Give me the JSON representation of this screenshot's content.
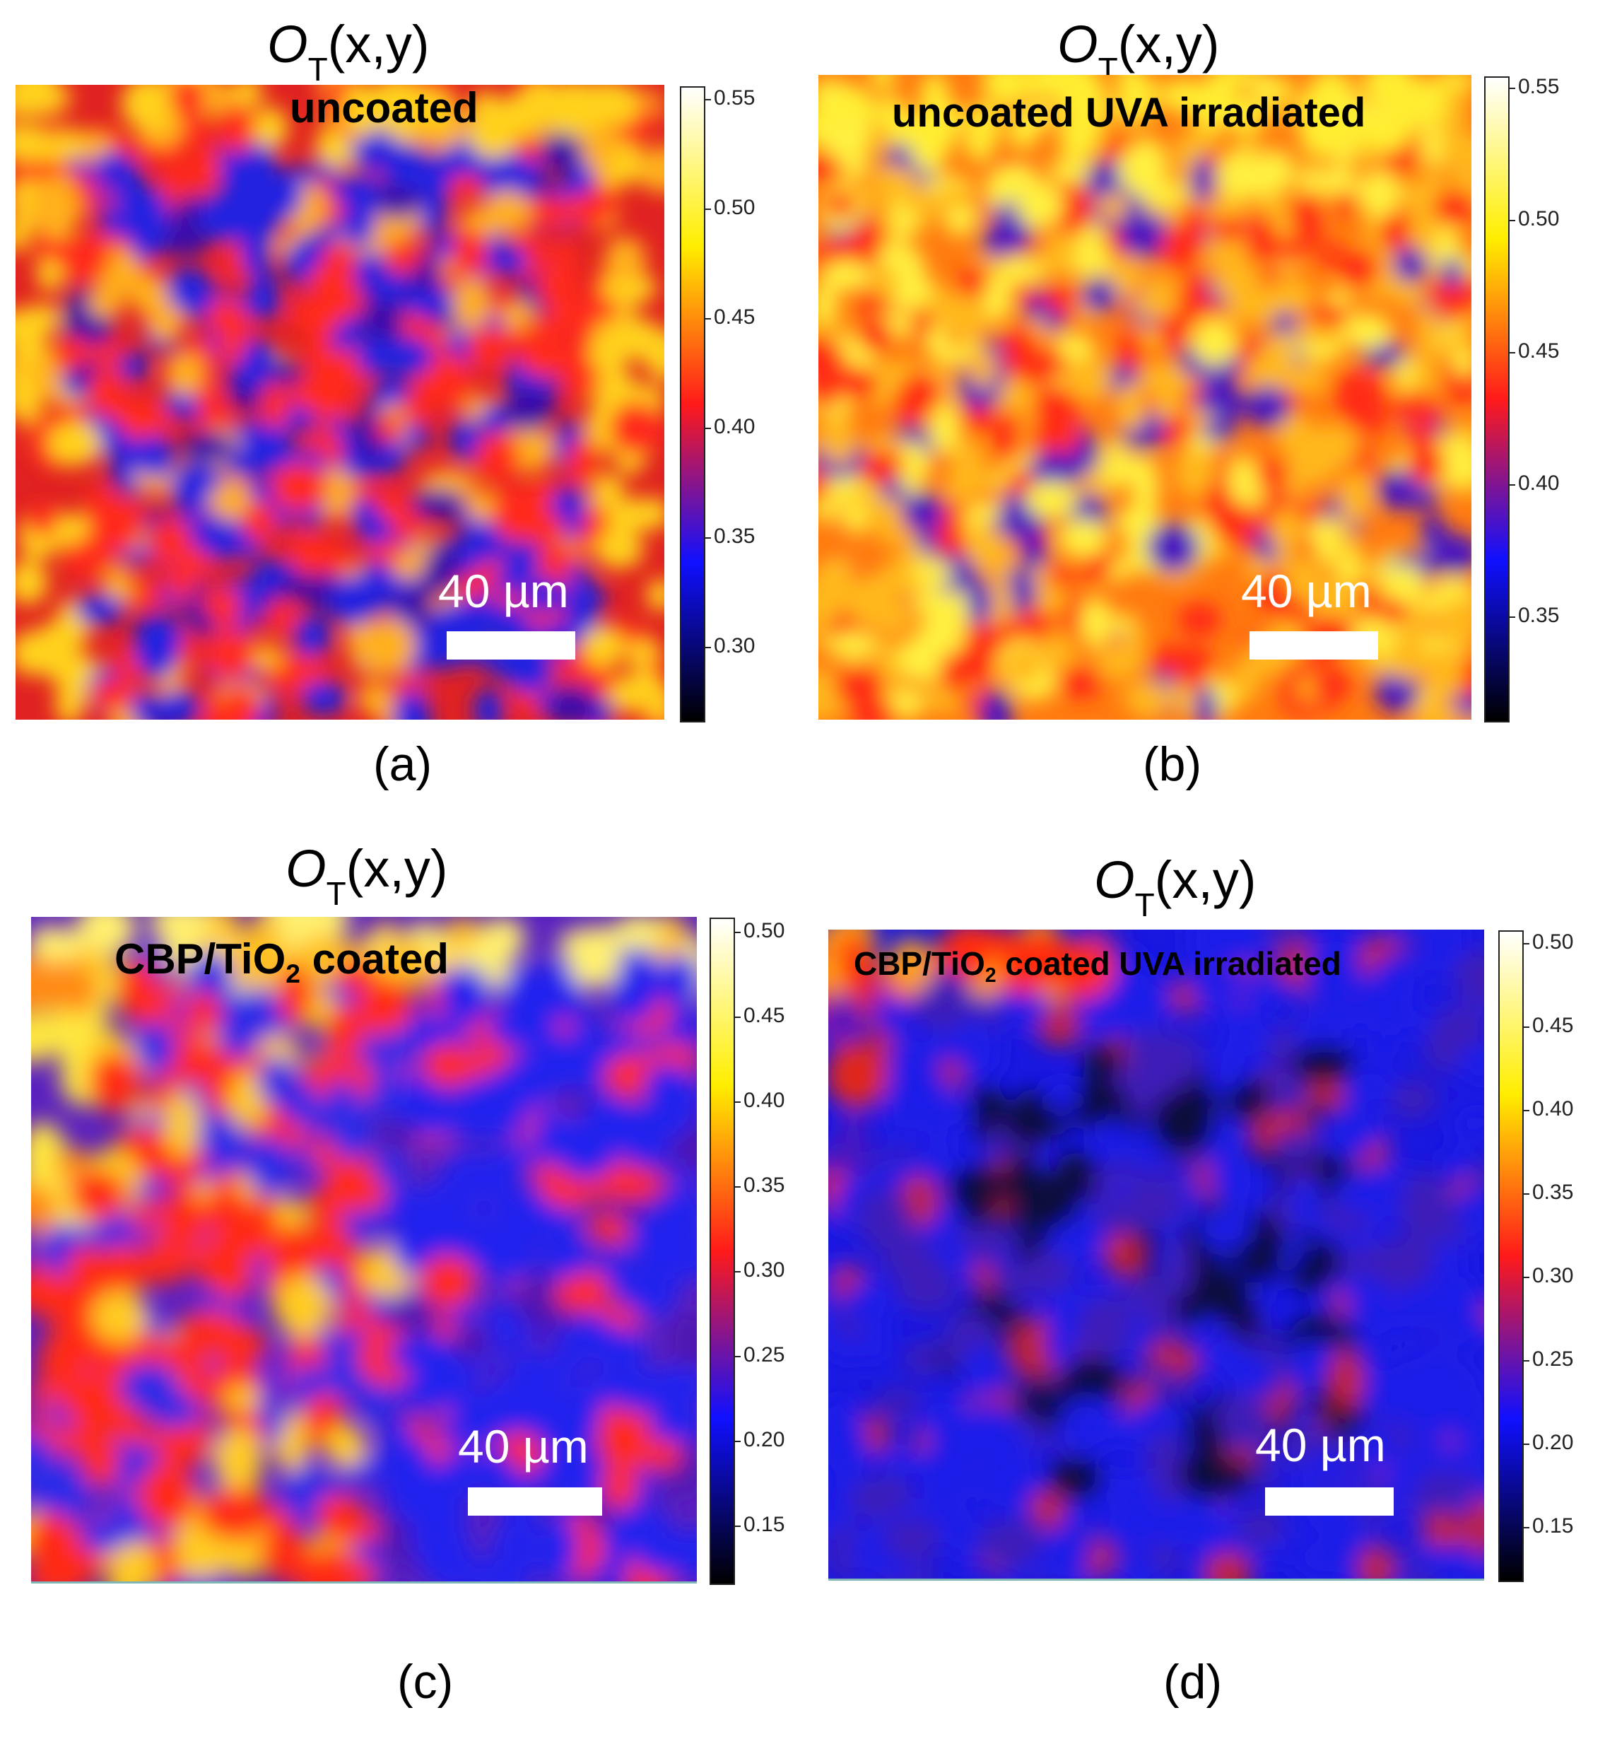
{
  "panels": [
    {
      "id": "a",
      "title_main": "O",
      "title_sub": "T",
      "title_tail": "(x,y)",
      "label": "uncoated",
      "scale_text": "40 µm",
      "letter": "(a)",
      "colorbar_ticks": [
        "0.55",
        "0.50",
        "0.45",
        "0.40",
        "0.35",
        "0.30"
      ]
    },
    {
      "id": "b",
      "title_main": "O",
      "title_sub": "T",
      "title_tail": "(x,y)",
      "label": "uncoated UVA irradiated",
      "scale_text": "40 µm",
      "letter": "(b)",
      "colorbar_ticks": [
        "0.55",
        "0.50",
        "0.45",
        "0.40",
        "0.35"
      ]
    },
    {
      "id": "c",
      "title_main": "O",
      "title_sub": "T",
      "title_tail": "(x,y)",
      "label_pre": "CBP/TiO",
      "label_sub": "2",
      "label_post": " coated",
      "scale_text": "40 µm",
      "letter": "(c)",
      "colorbar_ticks": [
        "0.50",
        "0.45",
        "0.40",
        "0.35",
        "0.30",
        "0.25",
        "0.20",
        "0.15"
      ]
    },
    {
      "id": "d",
      "title_main": "O",
      "title_sub": "T",
      "title_tail": "(x,y)",
      "label_pre": "CBP/TiO",
      "label_sub": "2",
      "label_post": " coated UVA irradiated",
      "scale_text": "40 µm",
      "letter": "(d)",
      "colorbar_ticks": [
        "0.50",
        "0.45",
        "0.40",
        "0.35",
        "0.30",
        "0.25",
        "0.20",
        "0.15"
      ]
    }
  ],
  "colormap": [
    "#000000",
    "#1010ff",
    "#ff1a1a",
    "#ffee00",
    "#ffffff"
  ]
}
